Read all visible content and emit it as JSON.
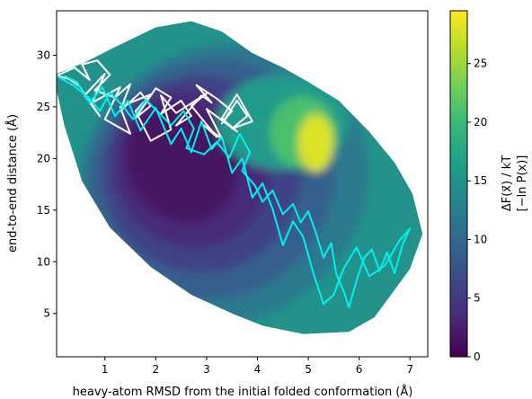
{
  "chart_data": {
    "type": "heatmap",
    "title": "",
    "xlabel": "heavy-atom RMSD from the initial folded conformation (Å)",
    "ylabel": "end-to-end distance (Å)",
    "xlim": [
      0.05,
      7.35
    ],
    "ylim": [
      0.8,
      34.3
    ],
    "xticks": [
      1,
      2,
      3,
      4,
      5,
      6,
      7
    ],
    "yticks": [
      5,
      10,
      15,
      20,
      25,
      30
    ],
    "grid": false,
    "colorbar": {
      "label_line1": "ΔF(x⃗) / kT",
      "label_line2": "[−ln P(x)]",
      "range": [
        0,
        29.5
      ],
      "ticks": [
        0,
        5,
        10,
        15,
        20,
        25
      ],
      "colormap": "viridis",
      "colors": [
        "#440154",
        "#482878",
        "#3e4989",
        "#31688e",
        "#26828e",
        "#1f9e89",
        "#35b779",
        "#6ece58",
        "#b5de2b",
        "#fde725"
      ]
    },
    "surface": {
      "description_free": true,
      "outline": [
        [
          0.05,
          28.2
        ],
        [
          0.6,
          29.3
        ],
        [
          1.2,
          30.8
        ],
        [
          2.0,
          32.7
        ],
        [
          2.7,
          33.3
        ],
        [
          3.3,
          32.3
        ],
        [
          3.9,
          30.2
        ],
        [
          4.5,
          28.8
        ],
        [
          5.0,
          27.4
        ],
        [
          5.6,
          25.6
        ],
        [
          6.2,
          22.6
        ],
        [
          6.7,
          19.6
        ],
        [
          7.05,
          16.6
        ],
        [
          7.25,
          12.7
        ],
        [
          7.0,
          9.3
        ],
        [
          6.6,
          6.6
        ],
        [
          6.3,
          4.6
        ],
        [
          5.8,
          3.2
        ],
        [
          4.9,
          3.0
        ],
        [
          4.1,
          3.8
        ],
        [
          3.5,
          5.0
        ],
        [
          2.7,
          6.8
        ],
        [
          1.9,
          9.5
        ],
        [
          1.1,
          13.3
        ],
        [
          0.55,
          17.8
        ],
        [
          0.2,
          23.2
        ],
        [
          0.05,
          26.6
        ]
      ],
      "minimum": [
        2.6,
        17.5
      ],
      "levels": [
        {
          "value": 12,
          "center": [
            3.3,
            17.5
          ],
          "rx": 2.95,
          "ry": 13.2,
          "angle": -33
        },
        {
          "value": 9,
          "center": [
            3.1,
            18.0
          ],
          "rx": 2.45,
          "ry": 11.5,
          "angle": -33
        },
        {
          "value": 6,
          "center": [
            2.9,
            18.5
          ],
          "rx": 1.95,
          "ry": 9.6,
          "angle": -33
        },
        {
          "value": 3.5,
          "center": [
            2.7,
            19.0
          ],
          "rx": 1.5,
          "ry": 7.8,
          "angle": -33
        },
        {
          "value": 1.5,
          "center": [
            2.5,
            19.5
          ],
          "rx": 1.05,
          "ry": 6.0,
          "angle": -33
        }
      ],
      "high_region": [
        {
          "value": 16,
          "center": [
            4.5,
            23.5
          ],
          "rx": 1.3,
          "ry": 4.6
        },
        {
          "value": 21,
          "center": [
            4.9,
            22.5
          ],
          "rx": 0.65,
          "ry": 3.5
        },
        {
          "value": 28,
          "center": [
            5.15,
            21.5
          ],
          "rx": 0.35,
          "ry": 2.8
        }
      ]
    },
    "series": [
      {
        "color": "#ffffff",
        "x": [
          0.05,
          0.4,
          0.7,
          0.55,
          0.85,
          1.1,
          0.8,
          1.2,
          1.5,
          1.3,
          1.7,
          1.9,
          1.6,
          2.0,
          2.3,
          2.1,
          2.5,
          2.7,
          2.4,
          2.9,
          3.1,
          2.8,
          3.2,
          3.5,
          3.3,
          3.6,
          3.8,
          3.5,
          3.9,
          3.6,
          3.3,
          3.6,
          3.0,
          3.3,
          2.9,
          3.2,
          2.7,
          3.0,
          2.4,
          2.1,
          2.3,
          1.9,
          1.6,
          1.9,
          1.3,
          1.5,
          1.0,
          1.3,
          0.75,
          1.0,
          0.6,
          0.9,
          0.5,
          0.3,
          0.05
        ],
        "y": [
          28.0,
          28.8,
          27.6,
          29.1,
          29.5,
          28.1,
          26.6,
          25.9,
          27.2,
          24.6,
          26.4,
          25.1,
          23.9,
          26.8,
          25.9,
          24.3,
          25.6,
          24.1,
          23.2,
          26.1,
          25.4,
          27.1,
          25.8,
          24.6,
          23.4,
          25.6,
          24.1,
          22.9,
          23.6,
          26.2,
          23.9,
          22.6,
          24.8,
          21.9,
          23.4,
          22.1,
          25.1,
          26.3,
          24.4,
          26.1,
          22.8,
          21.7,
          24.6,
          26.2,
          25.0,
          22.4,
          23.8,
          26.9,
          25.4,
          28.2,
          26.1,
          24.1,
          27.0,
          27.7,
          28.0
        ]
      },
      {
        "color": "#00f0f0",
        "x": [
          0.05,
          0.4,
          0.7,
          0.9,
          1.1,
          1.35,
          1.55,
          1.8,
          2.05,
          2.3,
          2.55,
          2.75,
          2.6,
          2.95,
          3.2,
          3.45,
          3.65,
          3.85,
          3.7,
          3.95,
          4.1,
          4.3,
          4.5,
          4.7,
          4.85,
          5.0,
          5.15,
          5.3,
          5.45,
          5.55,
          5.7,
          5.8,
          5.95,
          6.1,
          6.25,
          6.4,
          6.55,
          6.7,
          6.85,
          7.0,
          6.8,
          6.5,
          6.2,
          5.95,
          5.7,
          5.5,
          5.3,
          5.1,
          4.9,
          4.7,
          4.5,
          4.3,
          4.1,
          3.9,
          3.7,
          3.5,
          3.3,
          3.1,
          2.9,
          2.7,
          2.5,
          2.3,
          2.0,
          1.7,
          1.45,
          1.2,
          0.95,
          0.7,
          0.45,
          0.2
        ],
        "y": [
          28.0,
          27.0,
          25.8,
          24.6,
          26.4,
          25.1,
          23.8,
          25.7,
          24.5,
          23.2,
          24.6,
          22.9,
          21.0,
          20.4,
          21.6,
          20.1,
          22.4,
          20.6,
          18.8,
          17.4,
          15.8,
          16.9,
          14.6,
          15.6,
          13.8,
          14.9,
          12.8,
          10.4,
          11.8,
          8.8,
          7.1,
          5.6,
          8.2,
          10.4,
          11.2,
          9.1,
          10.9,
          8.9,
          11.6,
          13.2,
          12.1,
          9.6,
          8.6,
          11.4,
          9.4,
          6.8,
          5.9,
          8.9,
          12.4,
          13.9,
          11.6,
          15.1,
          17.6,
          16.2,
          20.0,
          18.6,
          22.1,
          20.9,
          23.6,
          20.6,
          22.9,
          21.4,
          24.9,
          22.7,
          25.6,
          24.1,
          26.9,
          25.4,
          27.4,
          28.0
        ]
      }
    ]
  }
}
